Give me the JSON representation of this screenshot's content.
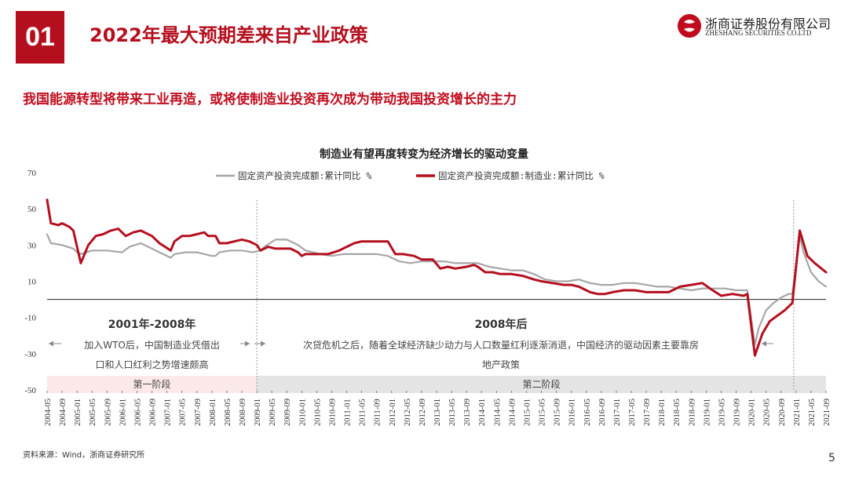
{
  "header": {
    "badge": "01",
    "title": "2022年最大预期差来自产业政策",
    "subtitle": "我国能源转型将带来工业再造，或将使制造业投资再次成为带动我国投资增长的主力",
    "logo_cn": "浙商证券股份有限公司",
    "logo_en": "ZHESHANG SECURITIES CO.LTD"
  },
  "footer": {
    "source": "资料来源：Wind，浙商证券研究所",
    "page": "5"
  },
  "colors": {
    "accent": "#b40f1e",
    "series_total": "#a6a6a6",
    "series_mfg": "#b40f1e"
  },
  "chart_data": {
    "type": "line",
    "title": "制造业有望再度转变为经济增长的驱动变量",
    "ylim": [
      -50,
      70
    ],
    "yticks": [
      -50,
      -30,
      -10,
      10,
      30,
      50,
      70
    ],
    "x_tick_labels": [
      "2004-05",
      "2004-09",
      "2005-01",
      "2005-05",
      "2005-09",
      "2006-01",
      "2006-05",
      "2006-09",
      "2007-01",
      "2007-05",
      "2007-09",
      "2008-01",
      "2008-05",
      "2008-09",
      "2009-01",
      "2009-05",
      "2009-09",
      "2010-01",
      "2010-05",
      "2010-09",
      "2011-01",
      "2011-05",
      "2011-09",
      "2012-01",
      "2012-05",
      "2012-09",
      "2013-01",
      "2013-05",
      "2013-09",
      "2014-01",
      "2014-05",
      "2014-09",
      "2015-01",
      "2015-05",
      "2015-09",
      "2016-01",
      "2016-05",
      "2016-09",
      "2017-01",
      "2017-05",
      "2017-09",
      "2018-01",
      "2018-05",
      "2018-09",
      "2019-01",
      "2019-05",
      "2019-09",
      "2020-01",
      "2020-05",
      "2020-09",
      "2021-01",
      "2021-05",
      "2021-09"
    ],
    "grid": false,
    "legend_position": "top",
    "series": [
      {
        "name": "固定资产投资完成额:累计同比 %",
        "color": "#a6a6a6",
        "points": [
          [
            "2004-05",
            36
          ],
          [
            "2004-06",
            31
          ],
          [
            "2004-09",
            30
          ],
          [
            "2004-12",
            28
          ],
          [
            "2005-01",
            26
          ],
          [
            "2005-02",
            25
          ],
          [
            "2005-05",
            27
          ],
          [
            "2005-09",
            27
          ],
          [
            "2006-01",
            26
          ],
          [
            "2006-03",
            29
          ],
          [
            "2006-06",
            31
          ],
          [
            "2006-09",
            28
          ],
          [
            "2007-01",
            24
          ],
          [
            "2007-02",
            23
          ],
          [
            "2007-03",
            25
          ],
          [
            "2007-06",
            26
          ],
          [
            "2007-09",
            26
          ],
          [
            "2008-01",
            24
          ],
          [
            "2008-02",
            24
          ],
          [
            "2008-03",
            26
          ],
          [
            "2008-06",
            27
          ],
          [
            "2008-09",
            27
          ],
          [
            "2008-12",
            26
          ],
          [
            "2009-02",
            27
          ],
          [
            "2009-03",
            29
          ],
          [
            "2009-06",
            33
          ],
          [
            "2009-09",
            33
          ],
          [
            "2009-12",
            30
          ],
          [
            "2010-02",
            27
          ],
          [
            "2010-04",
            26
          ],
          [
            "2010-06",
            25
          ],
          [
            "2010-09",
            24
          ],
          [
            "2010-12",
            25
          ],
          [
            "2011-03",
            25
          ],
          [
            "2011-06",
            25
          ],
          [
            "2011-09",
            25
          ],
          [
            "2011-12",
            24
          ],
          [
            "2012-03",
            21
          ],
          [
            "2012-06",
            20
          ],
          [
            "2012-09",
            21
          ],
          [
            "2012-12",
            21
          ],
          [
            "2013-03",
            21
          ],
          [
            "2013-06",
            20
          ],
          [
            "2013-09",
            20
          ],
          [
            "2013-12",
            20
          ],
          [
            "2014-03",
            18
          ],
          [
            "2014-06",
            17
          ],
          [
            "2014-09",
            16
          ],
          [
            "2014-12",
            16
          ],
          [
            "2015-03",
            14
          ],
          [
            "2015-06",
            11
          ],
          [
            "2015-09",
            10
          ],
          [
            "2015-12",
            10
          ],
          [
            "2016-03",
            11
          ],
          [
            "2016-06",
            9
          ],
          [
            "2016-09",
            8
          ],
          [
            "2016-12",
            8
          ],
          [
            "2017-03",
            9
          ],
          [
            "2017-06",
            9
          ],
          [
            "2017-09",
            8
          ],
          [
            "2017-12",
            7
          ],
          [
            "2018-03",
            7
          ],
          [
            "2018-06",
            6
          ],
          [
            "2018-09",
            5
          ],
          [
            "2018-12",
            6
          ],
          [
            "2019-03",
            6
          ],
          [
            "2019-06",
            6
          ],
          [
            "2019-09",
            5
          ],
          [
            "2019-12",
            5
          ],
          [
            "2020-02",
            -25
          ],
          [
            "2020-03",
            -16
          ],
          [
            "2020-05",
            -6
          ],
          [
            "2020-07",
            -2
          ],
          [
            "2020-09",
            1
          ],
          [
            "2020-11",
            3
          ],
          [
            "2020-12",
            3
          ],
          [
            "2021-02",
            35
          ],
          [
            "2021-03",
            26
          ],
          [
            "2021-05",
            15
          ],
          [
            "2021-07",
            10
          ],
          [
            "2021-09",
            7
          ]
        ]
      },
      {
        "name": "固定资产投资完成额:制造业:累计同比 %",
        "color": "#b40f1e",
        "points": [
          [
            "2004-05",
            55
          ],
          [
            "2004-06",
            42
          ],
          [
            "2004-08",
            41
          ],
          [
            "2004-09",
            42
          ],
          [
            "2004-11",
            40
          ],
          [
            "2004-12",
            38
          ],
          [
            "2005-02",
            20
          ],
          [
            "2005-04",
            30
          ],
          [
            "2005-06",
            35
          ],
          [
            "2005-08",
            36
          ],
          [
            "2005-10",
            38
          ],
          [
            "2005-12",
            39
          ],
          [
            "2006-02",
            35
          ],
          [
            "2006-04",
            37
          ],
          [
            "2006-06",
            38
          ],
          [
            "2006-09",
            35
          ],
          [
            "2006-11",
            31
          ],
          [
            "2007-02",
            27
          ],
          [
            "2007-03",
            32
          ],
          [
            "2007-05",
            35
          ],
          [
            "2007-07",
            35
          ],
          [
            "2007-09",
            36
          ],
          [
            "2007-11",
            37
          ],
          [
            "2007-12",
            35
          ],
          [
            "2008-02",
            35
          ],
          [
            "2008-03",
            31
          ],
          [
            "2008-05",
            31
          ],
          [
            "2008-07",
            32
          ],
          [
            "2008-09",
            33
          ],
          [
            "2008-11",
            32
          ],
          [
            "2009-01",
            30
          ],
          [
            "2009-02",
            27
          ],
          [
            "2009-04",
            29
          ],
          [
            "2009-06",
            28
          ],
          [
            "2009-08",
            28
          ],
          [
            "2009-10",
            28
          ],
          [
            "2009-12",
            26
          ],
          [
            "2010-01",
            24
          ],
          [
            "2010-02",
            25
          ],
          [
            "2010-05",
            25
          ],
          [
            "2010-08",
            25
          ],
          [
            "2010-11",
            27
          ],
          [
            "2011-01",
            29
          ],
          [
            "2011-03",
            31
          ],
          [
            "2011-05",
            32
          ],
          [
            "2011-08",
            32
          ],
          [
            "2011-12",
            32
          ],
          [
            "2012-02",
            25
          ],
          [
            "2012-04",
            25
          ],
          [
            "2012-07",
            24
          ],
          [
            "2012-09",
            22
          ],
          [
            "2012-12",
            22
          ],
          [
            "2013-02",
            17
          ],
          [
            "2013-04",
            18
          ],
          [
            "2013-06",
            17
          ],
          [
            "2013-09",
            18
          ],
          [
            "2013-11",
            19
          ],
          [
            "2013-12",
            18
          ],
          [
            "2014-02",
            15
          ],
          [
            "2014-04",
            15
          ],
          [
            "2014-06",
            14
          ],
          [
            "2014-09",
            14
          ],
          [
            "2014-12",
            13
          ],
          [
            "2015-03",
            11
          ],
          [
            "2015-05",
            10
          ],
          [
            "2015-08",
            9
          ],
          [
            "2015-11",
            8
          ],
          [
            "2016-01",
            8
          ],
          [
            "2016-03",
            7
          ],
          [
            "2016-06",
            4
          ],
          [
            "2016-08",
            3
          ],
          [
            "2016-10",
            3
          ],
          [
            "2016-12",
            4
          ],
          [
            "2017-03",
            5
          ],
          [
            "2017-06",
            5
          ],
          [
            "2017-09",
            4
          ],
          [
            "2017-12",
            4
          ],
          [
            "2018-03",
            4
          ],
          [
            "2018-06",
            7
          ],
          [
            "2018-09",
            8
          ],
          [
            "2018-12",
            9
          ],
          [
            "2019-02",
            6
          ],
          [
            "2019-05",
            2
          ],
          [
            "2019-08",
            3
          ],
          [
            "2019-11",
            2
          ],
          [
            "2019-12",
            3
          ],
          [
            "2020-02",
            -31
          ],
          [
            "2020-04",
            -19
          ],
          [
            "2020-06",
            -12
          ],
          [
            "2020-08",
            -9
          ],
          [
            "2020-10",
            -6
          ],
          [
            "2020-12",
            -2
          ],
          [
            "2021-02",
            38
          ],
          [
            "2021-04",
            24
          ],
          [
            "2021-06",
            20
          ],
          [
            "2021-09",
            15
          ]
        ]
      }
    ],
    "divider_dates": [
      "2009-01",
      "2021-01"
    ],
    "annotations": [
      {
        "label": "2001年-2008年",
        "lines": [
          "加入WTO后，中国制造业凭借出",
          "口和人口红利之势增速颇高"
        ]
      },
      {
        "label": "2008年后",
        "lines": [
          "次贷危机之后，随着全球经济缺少动力与人口数量红利逐渐消退，中国经济的驱动因素主要靠房",
          "地产政策"
        ]
      }
    ],
    "phases": [
      "第一阶段",
      "第二阶段"
    ]
  }
}
